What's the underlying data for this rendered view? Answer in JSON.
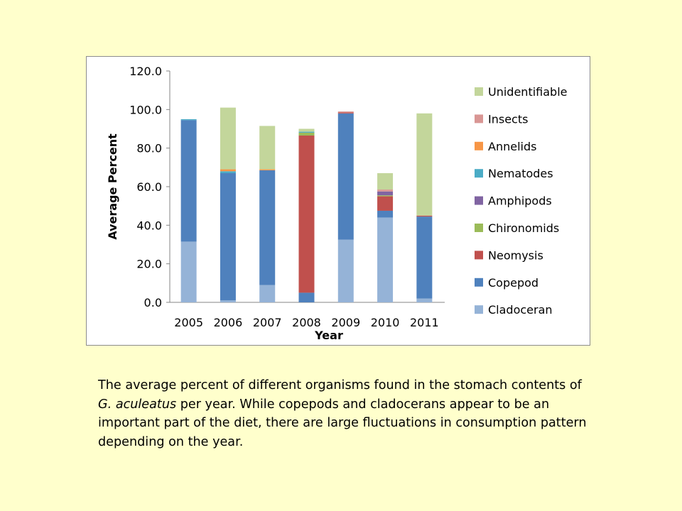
{
  "chart_data": {
    "type": "bar",
    "stacked": true,
    "title": "",
    "xlabel": "Year",
    "ylabel": "Average Percent",
    "ylim": [
      0,
      120
    ],
    "yticks": [
      "0.0",
      "20.0",
      "40.0",
      "60.0",
      "80.0",
      "100.0",
      "120.0"
    ],
    "ytick_values": [
      0,
      20,
      40,
      60,
      80,
      100,
      120
    ],
    "grid": false,
    "legend_position": "right",
    "categories": [
      "2005",
      "2006",
      "2007",
      "2008",
      "2009",
      "2010",
      "2011"
    ],
    "series": [
      {
        "name": "Cladoceran",
        "color": "#95b3d7",
        "values": [
          31.5,
          1.0,
          9.0,
          0,
          32.5,
          44.0,
          2.0
        ]
      },
      {
        "name": "Copepod",
        "color": "#4f81bd",
        "values": [
          63.0,
          66.0,
          59.5,
          5.0,
          65.5,
          3.5,
          42.5
        ]
      },
      {
        "name": "Neomysis",
        "color": "#c0504d",
        "values": [
          0,
          0,
          0,
          81.5,
          0.5,
          7.5,
          0.5
        ]
      },
      {
        "name": "Chironomids",
        "color": "#9bbb59",
        "values": [
          0,
          0,
          0,
          1.5,
          0,
          0.5,
          0
        ]
      },
      {
        "name": "Amphipods",
        "color": "#8064a2",
        "values": [
          0,
          0,
          0,
          0,
          0,
          2.0,
          0
        ]
      },
      {
        "name": "Nematodes",
        "color": "#4bacc6",
        "values": [
          0.5,
          1.0,
          0,
          0.5,
          0,
          0,
          0
        ]
      },
      {
        "name": "Annelids",
        "color": "#f79646",
        "values": [
          0,
          1.0,
          0.5,
          0,
          0,
          0,
          0
        ]
      },
      {
        "name": "Insects",
        "color": "#d99694",
        "values": [
          0,
          0,
          0,
          0,
          0.5,
          1.0,
          0
        ]
      },
      {
        "name": "Unidentifiable",
        "color": "#c3d69b",
        "values": [
          0,
          32.0,
          22.5,
          1.5,
          0,
          8.5,
          53.0
        ]
      }
    ]
  },
  "caption": {
    "prefix": "The average percent of different organisms found in the stomach contents of ",
    "species": "G. aculeatus",
    "suffix": " per year. While copepods and cladocerans appear to be an important part of the diet, there are large fluctuations in consumption pattern depending on the year."
  }
}
